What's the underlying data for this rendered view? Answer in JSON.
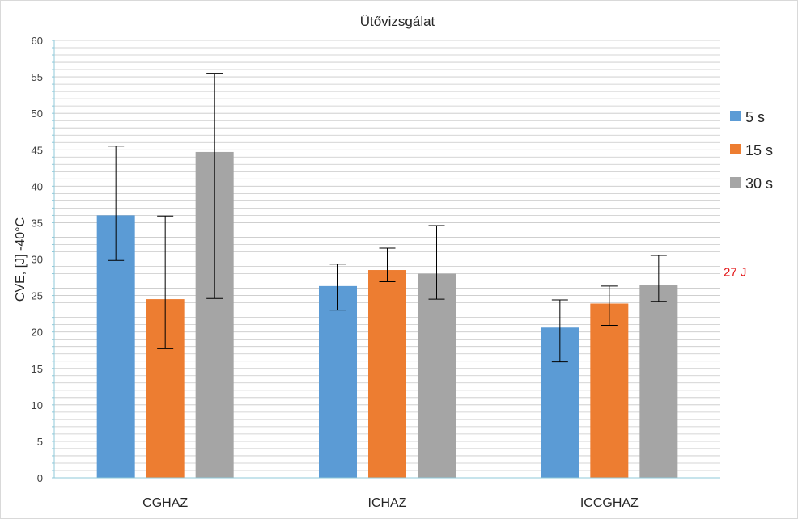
{
  "chart_data": {
    "type": "bar",
    "title": "Ütővizsgálat",
    "xlabel": "",
    "ylabel": "CVE, [J] -40°C",
    "ylim": [
      0,
      60
    ],
    "y_ticks": [
      0,
      5,
      10,
      15,
      20,
      25,
      30,
      35,
      40,
      45,
      50,
      55,
      60
    ],
    "grid": true,
    "legend_position": "right",
    "categories": [
      "CGHAZ",
      "ICHAZ",
      "ICCGHAZ"
    ],
    "series": [
      {
        "name": "5 s",
        "color": "#5b9bd5",
        "values": [
          36.0,
          26.3,
          20.6
        ],
        "error_low": [
          29.8,
          23.0,
          15.9
        ],
        "error_high": [
          45.5,
          29.3,
          24.4
        ]
      },
      {
        "name": "15 s",
        "color": "#ed7d31",
        "values": [
          24.5,
          28.5,
          23.9
        ],
        "error_low": [
          17.7,
          26.9,
          20.9
        ],
        "error_high": [
          35.9,
          31.5,
          26.3
        ]
      },
      {
        "name": "30 s",
        "color": "#a5a5a5",
        "values": [
          44.7,
          28.0,
          26.4
        ],
        "error_low": [
          24.6,
          24.5,
          24.2
        ],
        "error_high": [
          55.5,
          34.6,
          30.5
        ]
      }
    ],
    "reference_line": {
      "value": 27,
      "label": "27 J",
      "color": "#e31a1c"
    }
  }
}
